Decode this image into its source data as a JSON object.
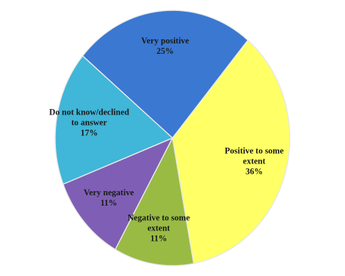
{
  "chart_data": {
    "type": "pie",
    "categories": [
      "Very positive",
      "Positive to some extent",
      "Negative to some extent",
      "Very negative",
      "Do not know/declined to answer"
    ],
    "values": [
      25,
      36,
      11,
      11,
      17
    ],
    "value_labels": [
      "25%",
      "36%",
      "11%",
      "11%",
      "17%"
    ],
    "colors": [
      "#3b78d2",
      "#ffff66",
      "#99bb44",
      "#7f5fb5",
      "#40b6d8"
    ]
  }
}
